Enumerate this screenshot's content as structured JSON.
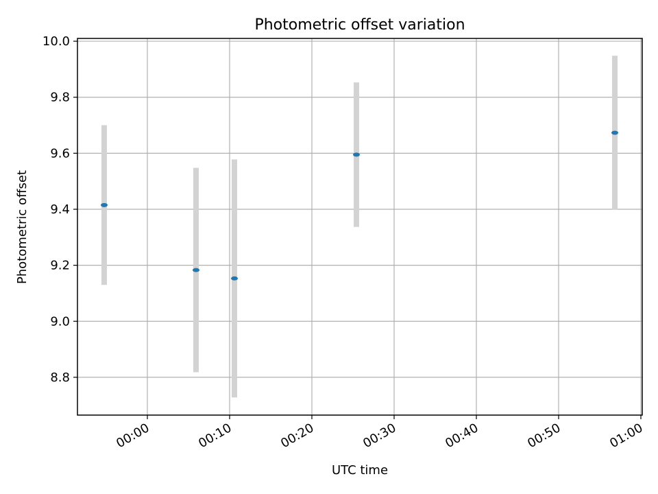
{
  "chart_data": {
    "type": "scatter",
    "title": "Photometric offset variation",
    "xlabel": "UTC time",
    "ylabel": "Photometric offset",
    "x_unit": "time of day (HH:MM)",
    "xlim": [
      "-00:08:30",
      "01:00:10"
    ],
    "ylim": [
      8.665,
      10.01
    ],
    "xticks": [
      "00:00",
      "00:10",
      "00:20",
      "00:30",
      "00:40",
      "00:50",
      "01:00"
    ],
    "yticks": [
      "8.8",
      "9.0",
      "9.2",
      "9.4",
      "9.6",
      "9.8",
      "10.0"
    ],
    "grid": true,
    "legend": "none",
    "colors": {
      "marker": "#1f77b4",
      "errorbar": "#d3d3d3",
      "grid": "#b0b0b0",
      "axes": "#000000"
    },
    "points": [
      {
        "x": "-00:05:15",
        "y": 9.415,
        "yerr": 0.285
      },
      {
        "x": "00:05:55",
        "y": 9.183,
        "yerr": 0.365
      },
      {
        "x": "00:10:35",
        "y": 9.153,
        "yerr": 0.425
      },
      {
        "x": "00:25:25",
        "y": 9.595,
        "yerr": 0.258
      },
      {
        "x": "00:56:50",
        "y": 9.673,
        "yerr": 0.275
      }
    ]
  }
}
